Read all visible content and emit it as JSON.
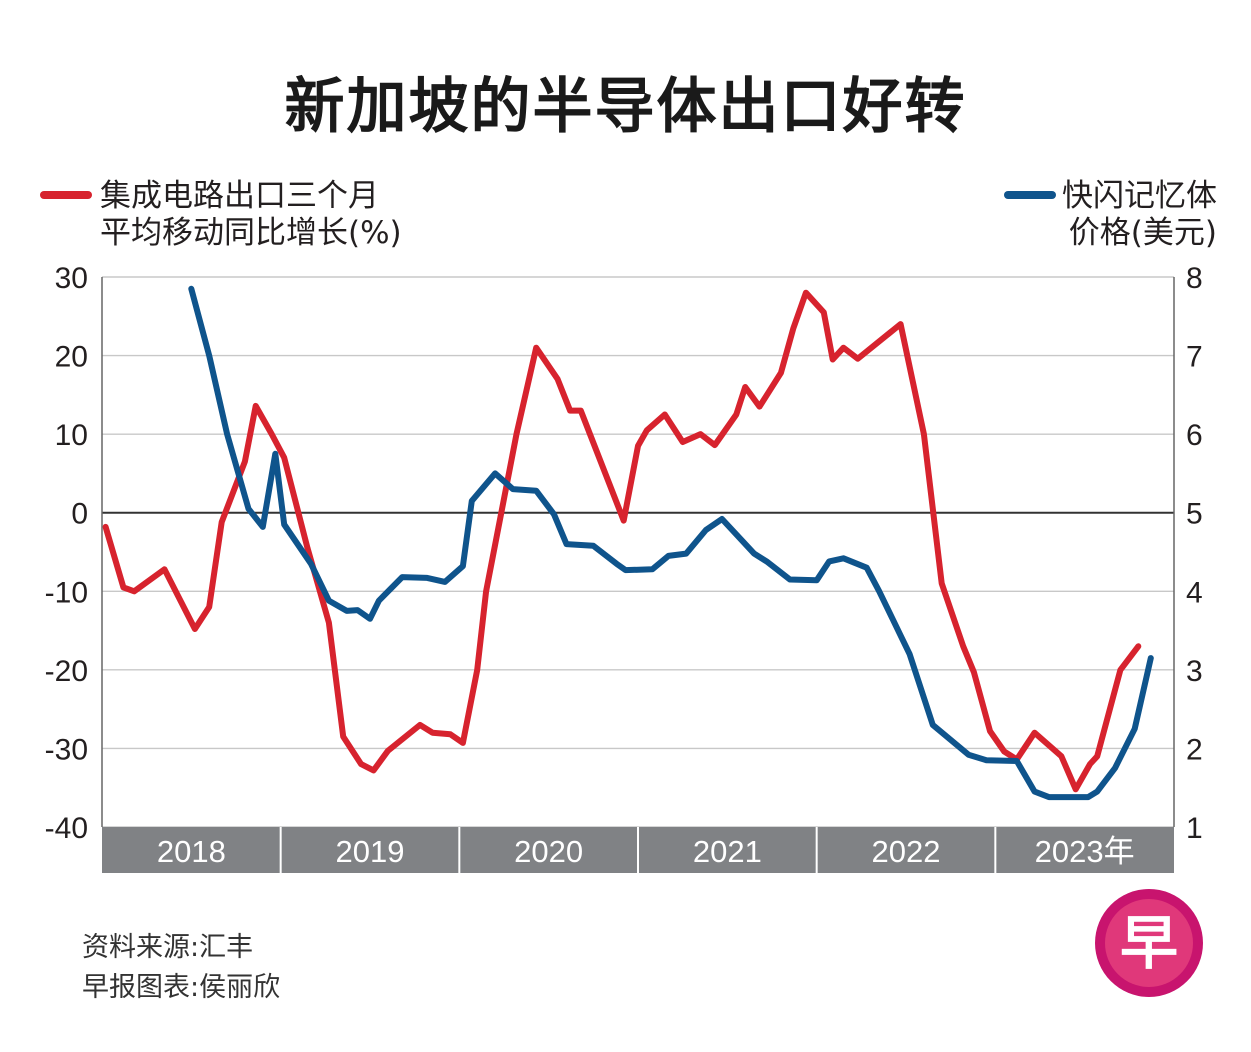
{
  "title": "新加坡的半导体出口好转",
  "legend": {
    "left_line1": "集成电路出口三个月",
    "left_line2": "平均移动同比增长(%)",
    "right_line1": "快闪记忆体",
    "right_line2": "价格(美元)"
  },
  "source": {
    "line1": "资料来源:汇丰",
    "line2": "早报图表:侯丽欣"
  },
  "logo_char": "早",
  "colors": {
    "ic_series": "#d7232e",
    "flash_series": "#0f548c",
    "year_band": "#808285",
    "grid": "#c8c8c8",
    "logo_outer": "#c8146e",
    "logo_inner": "#e0387a"
  },
  "chart_data": {
    "type": "line",
    "title": "新加坡的半导体出口好转",
    "x_axis": {
      "range": [
        2018.0,
        2024.0
      ],
      "year_labels": [
        "2018",
        "2019",
        "2020",
        "2021",
        "2022",
        "2023年"
      ]
    },
    "y_left": {
      "label": "集成电路出口三个月平均移动同比增长(%)",
      "range": [
        -40,
        30
      ],
      "ticks": [
        30,
        20,
        10,
        0,
        -10,
        -20,
        -30,
        -40
      ],
      "tick_labels": [
        "30",
        "20",
        "10",
        "0",
        "-10",
        "-20",
        "-30",
        "-40"
      ]
    },
    "y_right": {
      "label": "快闪记忆体价格(美元)",
      "range": [
        1,
        8
      ],
      "ticks": [
        8,
        7,
        6,
        5,
        4,
        3,
        2,
        1
      ],
      "tick_labels": [
        "8",
        "7",
        "6",
        "5",
        "4",
        "3",
        "2",
        "1"
      ]
    },
    "series": [
      {
        "name": "集成电路出口三个月平均移动同比增长",
        "axis": "left",
        "points": [
          [
            2018.02,
            -1.8
          ],
          [
            2018.12,
            -9.5
          ],
          [
            2018.18,
            -10
          ],
          [
            2018.35,
            -7.2
          ],
          [
            2018.52,
            -14.8
          ],
          [
            2018.6,
            -12
          ],
          [
            2018.67,
            -1.2
          ],
          [
            2018.8,
            6.5
          ],
          [
            2018.86,
            13.6
          ],
          [
            2018.95,
            10
          ],
          [
            2019.02,
            7
          ],
          [
            2019.15,
            -4.5
          ],
          [
            2019.27,
            -14
          ],
          [
            2019.35,
            -28.5
          ],
          [
            2019.45,
            -32
          ],
          [
            2019.52,
            -32.8
          ],
          [
            2019.6,
            -30.3
          ],
          [
            2019.78,
            -27
          ],
          [
            2019.85,
            -28
          ],
          [
            2019.95,
            -28.2
          ],
          [
            2020.02,
            -29.3
          ],
          [
            2020.1,
            -20
          ],
          [
            2020.15,
            -10
          ],
          [
            2020.32,
            10
          ],
          [
            2020.43,
            21
          ],
          [
            2020.55,
            17
          ],
          [
            2020.62,
            13
          ],
          [
            2020.68,
            13
          ],
          [
            2020.92,
            -1
          ],
          [
            2021.0,
            8.5
          ],
          [
            2021.05,
            10.5
          ],
          [
            2021.15,
            12.5
          ],
          [
            2021.25,
            9
          ],
          [
            2021.35,
            10
          ],
          [
            2021.43,
            8.6
          ],
          [
            2021.55,
            12.5
          ],
          [
            2021.6,
            16
          ],
          [
            2021.68,
            13.5
          ],
          [
            2021.8,
            17.8
          ],
          [
            2021.87,
            23.5
          ],
          [
            2021.94,
            28
          ],
          [
            2022.04,
            25.5
          ],
          [
            2022.09,
            19.5
          ],
          [
            2022.15,
            21
          ],
          [
            2022.23,
            19.6
          ],
          [
            2022.47,
            24
          ],
          [
            2022.6,
            10
          ],
          [
            2022.7,
            -9
          ],
          [
            2022.82,
            -17
          ],
          [
            2022.88,
            -20.3
          ],
          [
            2022.97,
            -27.8
          ],
          [
            2023.05,
            -30.4
          ],
          [
            2023.12,
            -31.4
          ],
          [
            2023.22,
            -28
          ],
          [
            2023.37,
            -31
          ],
          [
            2023.45,
            -35.2
          ],
          [
            2023.53,
            -32
          ],
          [
            2023.57,
            -31
          ],
          [
            2023.7,
            -20
          ],
          [
            2023.8,
            -17
          ]
        ]
      },
      {
        "name": "快闪记忆体价格",
        "axis": "right",
        "points": [
          [
            2018.5,
            7.85
          ],
          [
            2018.6,
            7.0
          ],
          [
            2018.7,
            6.0
          ],
          [
            2018.82,
            5.05
          ],
          [
            2018.9,
            4.82
          ],
          [
            2018.97,
            5.75
          ],
          [
            2019.02,
            4.85
          ],
          [
            2019.17,
            4.35
          ],
          [
            2019.27,
            3.88
          ],
          [
            2019.37,
            3.75
          ],
          [
            2019.43,
            3.76
          ],
          [
            2019.5,
            3.65
          ],
          [
            2019.55,
            3.88
          ],
          [
            2019.68,
            4.18
          ],
          [
            2019.82,
            4.17
          ],
          [
            2019.92,
            4.12
          ],
          [
            2020.02,
            4.32
          ],
          [
            2020.07,
            5.15
          ],
          [
            2020.2,
            5.5
          ],
          [
            2020.3,
            5.3
          ],
          [
            2020.43,
            5.28
          ],
          [
            2020.53,
            4.98
          ],
          [
            2020.6,
            4.6
          ],
          [
            2020.75,
            4.58
          ],
          [
            2020.88,
            4.35
          ],
          [
            2020.93,
            4.27
          ],
          [
            2021.08,
            4.28
          ],
          [
            2021.17,
            4.45
          ],
          [
            2021.27,
            4.48
          ],
          [
            2021.38,
            4.78
          ],
          [
            2021.47,
            4.92
          ],
          [
            2021.65,
            4.48
          ],
          [
            2021.72,
            4.38
          ],
          [
            2021.85,
            4.15
          ],
          [
            2022.0,
            4.14
          ],
          [
            2022.07,
            4.38
          ],
          [
            2022.15,
            4.42
          ],
          [
            2022.28,
            4.3
          ],
          [
            2022.35,
            4.0
          ],
          [
            2022.52,
            3.2
          ],
          [
            2022.65,
            2.3
          ],
          [
            2022.85,
            1.92
          ],
          [
            2022.95,
            1.85
          ],
          [
            2023.12,
            1.84
          ],
          [
            2023.22,
            1.45
          ],
          [
            2023.3,
            1.38
          ],
          [
            2023.52,
            1.38
          ],
          [
            2023.57,
            1.45
          ],
          [
            2023.67,
            1.75
          ],
          [
            2023.78,
            2.25
          ],
          [
            2023.87,
            3.15
          ]
        ]
      }
    ],
    "grid": true,
    "zero_line": true,
    "legend": "top"
  }
}
